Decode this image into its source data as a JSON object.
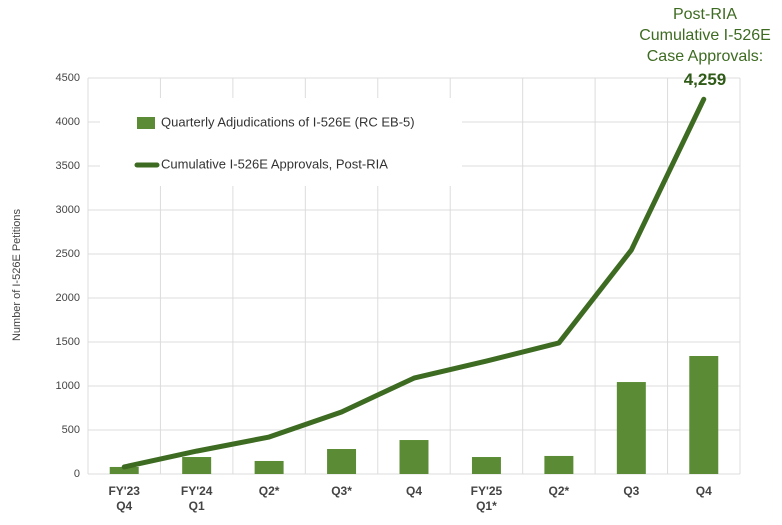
{
  "chart_data": {
    "type": "bar-line",
    "y_label": "Number of I-526E Petitions",
    "annotation": "Post-RIA\nCumulative I-526E\nCase Approvals:",
    "categories": [
      "FY'23\nQ4",
      "FY'24\nQ1",
      "Q2*",
      "Q3*",
      "Q4",
      "FY'25\nQ1*",
      "Q2*",
      "Q3",
      "Q4"
    ],
    "series": [
      {
        "name": "Quarterly Adjudications of I-526E (RC EB-5)",
        "type": "bar",
        "color": "#5b8c35",
        "values": [
          80,
          193,
          148,
          284,
          386,
          193,
          205,
          1045,
          1341
        ]
      },
      {
        "name": "Cumulative I-526E Approvals, Post-RIA",
        "type": "line",
        "color": "#3e6b22",
        "values": [
          80,
          260,
          420,
          705,
          1090,
          1284,
          1489,
          2545,
          4259
        ],
        "value_labels": [
          null,
          null,
          null,
          null,
          null,
          null,
          null,
          null,
          "4,259"
        ]
      }
    ],
    "ylim": [
      0,
      4500
    ],
    "yticks": [
      0,
      500,
      1000,
      1500,
      2000,
      2500,
      3000,
      3500,
      4000,
      4500
    ],
    "grid": true
  }
}
